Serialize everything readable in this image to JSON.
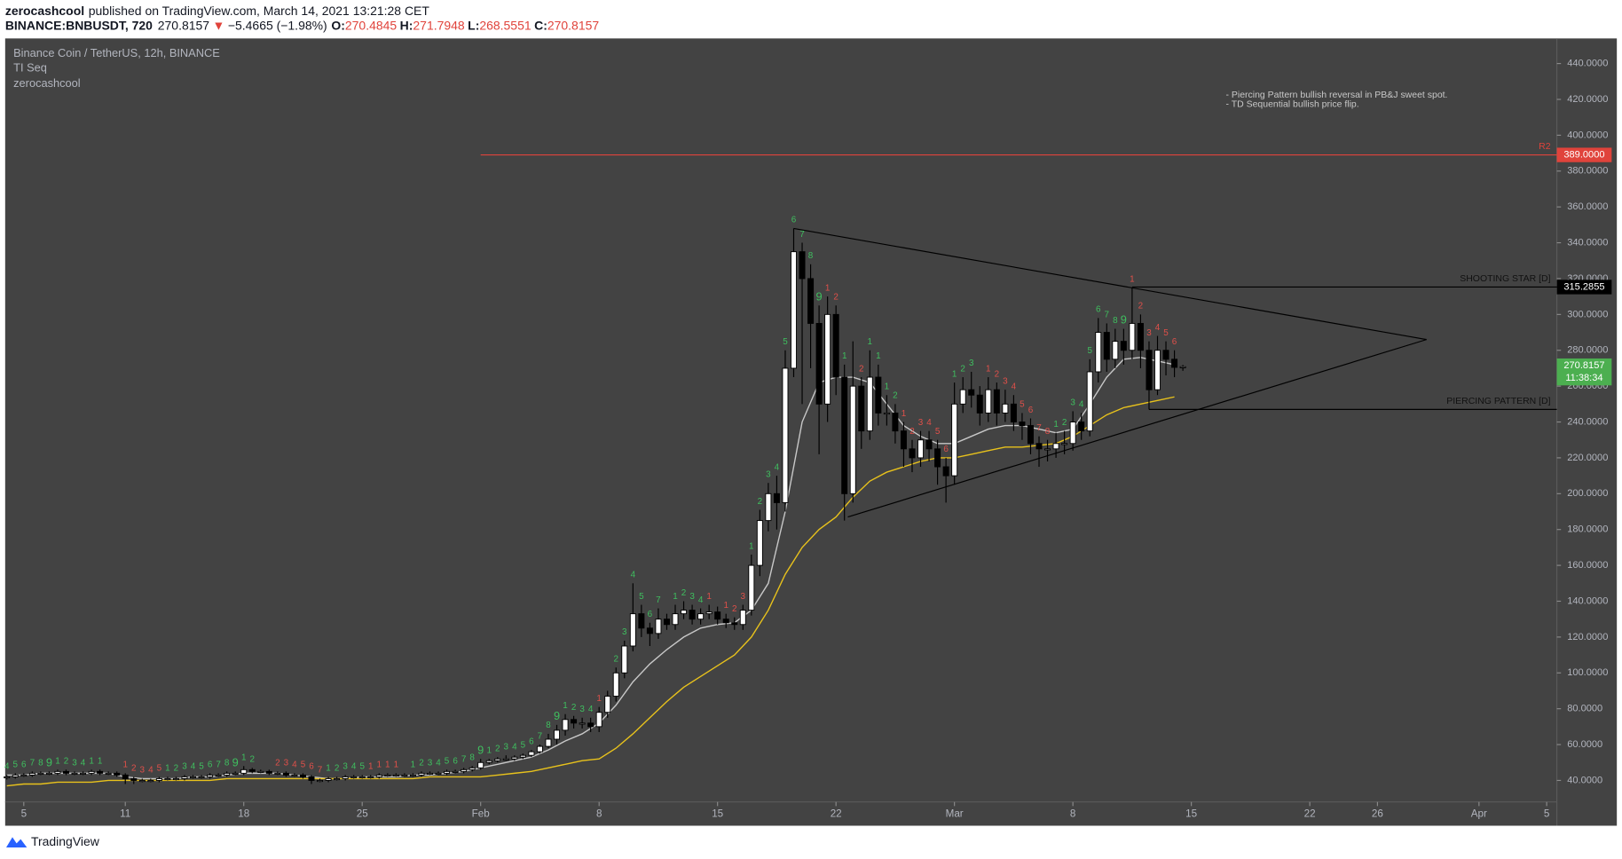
{
  "header": {
    "author": "zerocashcool",
    "published": "published on TradingView.com, March 14, 2021 13:21:28 CET",
    "symbol": "BINANCE:BNBUSDT, 720",
    "last": 270.8157,
    "direction": "▼",
    "change": "−5.4665 (−1.98%)",
    "open_label": "O:",
    "open": 270.4845,
    "high_label": "H:",
    "high": 271.7948,
    "low_label": "L:",
    "low": 268.5551,
    "close_label": "C:",
    "close": 270.8157
  },
  "chart_data": {
    "type": "candlestick",
    "title": "Binance Coin / TetherUS, 12h, BINANCE",
    "legend": [
      "TI Seq",
      "zerocashcool"
    ],
    "notes": [
      "- Piercing Pattern bullish reversal in PB&J sweet spot.",
      "- TD Sequential bullish price flip."
    ],
    "up_color": "#ffffff",
    "down_color": "#000000",
    "xlim": [
      3.9,
      95.6
    ],
    "ylim": [
      28,
      454
    ],
    "xticks": [
      {
        "value": 5,
        "label": "5"
      },
      {
        "value": 11,
        "label": "11"
      },
      {
        "value": 18,
        "label": "18"
      },
      {
        "value": 25,
        "label": "25"
      },
      {
        "value": 32,
        "label": "Feb"
      },
      {
        "value": 39,
        "label": "8"
      },
      {
        "value": 46,
        "label": "15"
      },
      {
        "value": 53,
        "label": "22"
      },
      {
        "value": 60,
        "label": "Mar"
      },
      {
        "value": 67,
        "label": "8"
      },
      {
        "value": 74,
        "label": "15"
      },
      {
        "value": 81,
        "label": "22"
      },
      {
        "value": 85,
        "label": "26"
      },
      {
        "value": 91,
        "label": "Apr"
      },
      {
        "value": 95,
        "label": "5"
      }
    ],
    "yticks": [
      {
        "value": 40,
        "label": "40.0000"
      },
      {
        "value": 60,
        "label": "60.0000"
      },
      {
        "value": 80,
        "label": "80.0000"
      },
      {
        "value": 100,
        "label": "100.0000"
      },
      {
        "value": 120,
        "label": "120.0000"
      },
      {
        "value": 140,
        "label": "140.0000"
      },
      {
        "value": 160,
        "label": "160.0000"
      },
      {
        "value": 180,
        "label": "180.0000"
      },
      {
        "value": 200,
        "label": "200.0000"
      },
      {
        "value": 220,
        "label": "220.0000"
      },
      {
        "value": 240,
        "label": "240.0000"
      },
      {
        "value": 260,
        "label": "260.0000"
      },
      {
        "value": 280,
        "label": "280.0000"
      },
      {
        "value": 300,
        "label": "300.0000"
      },
      {
        "value": 320,
        "label": "320.0000"
      },
      {
        "value": 340,
        "label": "340.0000"
      },
      {
        "value": 360,
        "label": "360.0000"
      },
      {
        "value": 380,
        "label": "380.0000"
      },
      {
        "value": 400,
        "label": "400.0000"
      },
      {
        "value": 420,
        "label": "420.0000"
      },
      {
        "value": 440,
        "label": "440.0000"
      }
    ],
    "x": [
      4,
      4.5,
      5,
      5.5,
      6,
      6.5,
      7,
      7.5,
      8,
      8.5,
      9,
      9.5,
      10,
      10.5,
      11,
      11.5,
      12,
      12.5,
      13,
      13.5,
      14,
      14.5,
      15,
      15.5,
      16,
      16.5,
      17,
      17.5,
      18,
      18.5,
      19,
      19.5,
      20,
      20.5,
      21,
      21.5,
      22,
      22.5,
      23,
      23.5,
      24,
      24.5,
      25,
      25.5,
      26,
      26.5,
      27,
      27.5,
      28,
      28.5,
      29,
      29.5,
      30,
      30.5,
      31,
      31.5,
      32,
      32.5,
      33,
      33.5,
      34,
      34.5,
      35,
      35.5,
      36,
      36.5,
      37,
      37.5,
      38,
      38.5,
      39,
      39.5,
      40,
      40.5,
      41,
      41.5,
      42,
      42.5,
      43,
      43.5,
      44,
      44.5,
      45,
      45.5,
      46,
      46.5,
      47,
      47.5,
      48,
      48.5,
      49,
      49.5,
      50,
      50.5,
      51,
      51.5,
      52,
      52.5,
      53,
      53.5,
      54,
      54.5,
      55,
      55.5,
      56,
      56.5,
      57,
      57.5,
      58,
      58.5,
      59,
      59.5,
      60,
      60.5,
      61,
      61.5,
      62,
      62.5,
      63,
      63.5,
      64,
      64.5,
      65,
      65.5,
      66,
      66.5,
      67,
      67.5,
      68,
      68.5,
      69,
      69.5,
      70,
      70.5,
      71,
      71.5,
      72,
      72.5,
      73,
      73.5
    ],
    "open": [
      41.5,
      42,
      43,
      43,
      44,
      44,
      44,
      45,
      44,
      44,
      44,
      45,
      44,
      44,
      43,
      41,
      40,
      40,
      40,
      41,
      41,
      41,
      42,
      42,
      42,
      43,
      43,
      44,
      44,
      46,
      45,
      45,
      44,
      44,
      43,
      43,
      42,
      40,
      40,
      41,
      41,
      42,
      42,
      42,
      42,
      43,
      43,
      43,
      43,
      43,
      44,
      44,
      44,
      45,
      45,
      46,
      47,
      50,
      51,
      52,
      52,
      53,
      54,
      56,
      59,
      63,
      68,
      74,
      72,
      72,
      70,
      78,
      87,
      100,
      115,
      133,
      125,
      122,
      130,
      127,
      133,
      135,
      130,
      133,
      134,
      130,
      128,
      127,
      135,
      160,
      185,
      200,
      195,
      270,
      335,
      320,
      295,
      250,
      300,
      265,
      200,
      260,
      235,
      265,
      245,
      245,
      235,
      225,
      220,
      230,
      225,
      215,
      210,
      250,
      258,
      255,
      245,
      258,
      245,
      250,
      240,
      238,
      228,
      225,
      225,
      228,
      228,
      240,
      235,
      268,
      290,
      275,
      285,
      280,
      295,
      280,
      258,
      280,
      275,
      270.4845
    ],
    "high": [
      43,
      44,
      44,
      45,
      45,
      45,
      46,
      46,
      45,
      45,
      46,
      46,
      45,
      45,
      44,
      42,
      41,
      41,
      42,
      42,
      42,
      43,
      43,
      43,
      44,
      44,
      45,
      45,
      48,
      47,
      46,
      46,
      45,
      45,
      44,
      44,
      43,
      41,
      42,
      42,
      43,
      43,
      43,
      43,
      44,
      44,
      44,
      44,
      44,
      45,
      45,
      45,
      46,
      46,
      47,
      48,
      52,
      52,
      53,
      54,
      54,
      55,
      57,
      60,
      66,
      71,
      77,
      76,
      75,
      75,
      81,
      90,
      103,
      118,
      150,
      138,
      128,
      136,
      133,
      138,
      140,
      138,
      136,
      138,
      137,
      133,
      131,
      138,
      166,
      191,
      206,
      210,
      280,
      348,
      340,
      328,
      305,
      310,
      305,
      272,
      285,
      265,
      280,
      272,
      255,
      250,
      240,
      230,
      235,
      235,
      230,
      220,
      262,
      265,
      268,
      260,
      265,
      262,
      258,
      255,
      245,
      242,
      232,
      230,
      234,
      235,
      246,
      245,
      275,
      298,
      295,
      292,
      292,
      315,
      300,
      285,
      288,
      285,
      280,
      271.7948
    ],
    "low": [
      40.5,
      41,
      42,
      42,
      43,
      43,
      43,
      43,
      43,
      43,
      43,
      43,
      43,
      42,
      38,
      38,
      39,
      39,
      39,
      40,
      40,
      40,
      41,
      41,
      41,
      42,
      42,
      43,
      43,
      44,
      44,
      43,
      43,
      42,
      42,
      41,
      38,
      39,
      39,
      40,
      40,
      41,
      41,
      41,
      41,
      42,
      42,
      42,
      42,
      42,
      43,
      43,
      43,
      44,
      44,
      45,
      46,
      49,
      50,
      51,
      51,
      52,
      53,
      55,
      58,
      60,
      65,
      69,
      69,
      67,
      67,
      75,
      84,
      97,
      112,
      120,
      115,
      119,
      124,
      124,
      130,
      127,
      127,
      130,
      127,
      125,
      124,
      124,
      132,
      154,
      179,
      180,
      190,
      265,
      250,
      270,
      222,
      240,
      255,
      185,
      195,
      225,
      230,
      238,
      238,
      228,
      215,
      212,
      215,
      218,
      205,
      195,
      205,
      245,
      248,
      238,
      240,
      238,
      240,
      235,
      230,
      222,
      215,
      218,
      220,
      222,
      224,
      230,
      232,
      262,
      268,
      270,
      272,
      275,
      270,
      247,
      255,
      266,
      265,
      268.5551
    ],
    "close": [
      42,
      43,
      43,
      44,
      44,
      44,
      45,
      44,
      44,
      44,
      45,
      44,
      44,
      43,
      41,
      40,
      40,
      40,
      41,
      41,
      41,
      42,
      42,
      42,
      43,
      43,
      44,
      44,
      46,
      45,
      45,
      44,
      44,
      43,
      43,
      42,
      40,
      40,
      41,
      41,
      42,
      42,
      42,
      42,
      43,
      43,
      43,
      43,
      43,
      44,
      44,
      44,
      45,
      45,
      46,
      47,
      50,
      51,
      52,
      52,
      53,
      54,
      56,
      59,
      63,
      68,
      74,
      72,
      72,
      70,
      78,
      87,
      100,
      115,
      133,
      125,
      122,
      130,
      127,
      133,
      135,
      130,
      133,
      134,
      130,
      128,
      127,
      135,
      160,
      185,
      200,
      195,
      270,
      335,
      320,
      295,
      250,
      300,
      265,
      200,
      260,
      235,
      265,
      245,
      245,
      235,
      225,
      220,
      230,
      225,
      215,
      210,
      250,
      258,
      255,
      245,
      258,
      245,
      250,
      240,
      238,
      228,
      225,
      225,
      228,
      228,
      240,
      235,
      268,
      290,
      275,
      285,
      280,
      295,
      280,
      258,
      280,
      275,
      270.4845,
      270.8157
    ],
    "moving_averages": [
      {
        "color": "#c8c8c8",
        "x": [
          4,
          5,
          6,
          7,
          8,
          9,
          10,
          11,
          12,
          13,
          14,
          15,
          16,
          17,
          18,
          19,
          20,
          21,
          22,
          23,
          24,
          25,
          26,
          27,
          28,
          29,
          30,
          31,
          32,
          33,
          34,
          35,
          36,
          37,
          38,
          39,
          40,
          41,
          42,
          43,
          44,
          45,
          46,
          47,
          48,
          49,
          50,
          51,
          52,
          53,
          54,
          55,
          56,
          57,
          58,
          59,
          60,
          61,
          62,
          63,
          64,
          65,
          66,
          67,
          68,
          69,
          70,
          71,
          72,
          73
        ],
        "values": [
          43,
          43,
          44,
          44,
          44,
          44,
          44,
          42,
          41,
          41,
          41,
          42,
          42,
          43,
          44,
          44,
          44,
          43,
          42,
          41,
          41,
          42,
          42,
          42,
          43,
          43,
          44,
          45,
          47,
          49,
          51,
          53,
          57,
          62,
          66,
          72,
          82,
          95,
          105,
          113,
          120,
          125,
          127,
          128,
          135,
          150,
          190,
          240,
          262,
          265,
          265,
          262,
          250,
          238,
          232,
          228,
          228,
          232,
          236,
          238,
          238,
          236,
          234,
          236,
          250,
          265,
          275,
          276,
          274,
          272
        ]
      },
      {
        "color": "#e8c21c",
        "x": [
          4,
          5,
          6,
          7,
          8,
          9,
          10,
          11,
          12,
          13,
          14,
          15,
          16,
          17,
          18,
          19,
          20,
          21,
          22,
          23,
          24,
          25,
          26,
          27,
          28,
          29,
          30,
          31,
          32,
          33,
          34,
          35,
          36,
          37,
          38,
          39,
          40,
          41,
          42,
          43,
          44,
          45,
          46,
          47,
          48,
          49,
          50,
          51,
          52,
          53,
          54,
          55,
          56,
          57,
          58,
          59,
          60,
          61,
          62,
          63,
          64,
          65,
          66,
          67,
          68,
          69,
          70,
          71,
          72,
          73
        ],
        "values": [
          37,
          38,
          38,
          39,
          39,
          39,
          40,
          40,
          40,
          40,
          40,
          40,
          40,
          41,
          41,
          41,
          41,
          41,
          41,
          41,
          41,
          41,
          41,
          41,
          41,
          42,
          42,
          42,
          42,
          43,
          44,
          45,
          47,
          49,
          51,
          52,
          58,
          66,
          75,
          84,
          92,
          98,
          104,
          110,
          120,
          135,
          155,
          170,
          180,
          187,
          198,
          207,
          212,
          215,
          218,
          220,
          220,
          222,
          224,
          226,
          226,
          227,
          228,
          232,
          238,
          244,
          248,
          250,
          252,
          254
        ]
      }
    ],
    "td_setups": [
      {
        "color": "#3fbf5f",
        "x": [
          4,
          4.5,
          5,
          5.5,
          6,
          6.5,
          7,
          7.5,
          8,
          8.5,
          9,
          9.5,
          13.5,
          14,
          14.5,
          15,
          15.5,
          16,
          16.5,
          17,
          17.5,
          18,
          18.5,
          23,
          23.5,
          24,
          24.5,
          25,
          28,
          28.5,
          29,
          29.5,
          30,
          30.5,
          31,
          31.5,
          32,
          32.5,
          33,
          33.5,
          34,
          34.5,
          35,
          35.5,
          36,
          36.5,
          37,
          37.5,
          38,
          38.5,
          40,
          40.5,
          41,
          41.5,
          42,
          42.5,
          43.5,
          44,
          44.5,
          45,
          48,
          48.5,
          49,
          49.5,
          50,
          50.5,
          51,
          51.5,
          52,
          53.5,
          55,
          55.5,
          56,
          56.5,
          60,
          60.5,
          61,
          66,
          66.5,
          67,
          67.5,
          68,
          68.5,
          69,
          69.5,
          70
        ],
        "counts": [
          4,
          5,
          6,
          7,
          8,
          9,
          1,
          2,
          3,
          4,
          1,
          1,
          1,
          2,
          3,
          4,
          5,
          6,
          7,
          8,
          9,
          1,
          2,
          1,
          2,
          3,
          4,
          5,
          1,
          2,
          3,
          4,
          5,
          6,
          7,
          8,
          9,
          1,
          2,
          3,
          4,
          5,
          6,
          7,
          8,
          9,
          1,
          2,
          3,
          4,
          2,
          3,
          4,
          5,
          6,
          7,
          1,
          2,
          3,
          4,
          1,
          2,
          3,
          4,
          5,
          6,
          7,
          8,
          9,
          1,
          1,
          1,
          1,
          2,
          1,
          2,
          3,
          1,
          2,
          3,
          4,
          5,
          6,
          7,
          8,
          9
        ]
      },
      {
        "color": "#e0504a",
        "x": [
          11,
          11.5,
          12,
          12.5,
          13,
          20,
          20.5,
          21,
          21.5,
          22,
          22.5,
          25.5,
          26,
          26.5,
          27,
          39,
          45.5,
          46.5,
          47,
          47.5,
          52.5,
          53,
          54.5,
          57,
          57.5,
          58,
          58.5,
          59,
          59.5,
          62,
          62.5,
          63,
          63.5,
          64,
          64.5,
          65,
          65.5,
          70.5,
          71,
          71.5,
          72,
          72.5,
          73
        ],
        "counts": [
          1,
          2,
          3,
          4,
          5,
          2,
          3,
          4,
          5,
          6,
          7,
          1,
          1,
          1,
          1,
          1,
          1,
          1,
          2,
          3,
          1,
          2,
          2,
          1,
          2,
          3,
          4,
          5,
          6,
          1,
          2,
          3,
          4,
          5,
          6,
          7,
          8,
          1,
          2,
          3,
          4,
          5,
          6
        ]
      }
    ],
    "levels": [
      {
        "name": "R2",
        "price": {
          "value": 389,
          "label": "389.0000"
        },
        "from": 32,
        "color": "#e0433b"
      },
      {
        "name": "SHOOTING STAR [D]",
        "price": {
          "value": 315.2855,
          "label": "315.2855"
        },
        "from": 70.5,
        "color": "#000000"
      },
      {
        "name": "PIERCING PATTERN [D]",
        "price": 247,
        "from": 71.5,
        "color": "#000000"
      }
    ],
    "trendlines": [
      {
        "x": [
          50.5,
          87.9
        ],
        "y": [
          348,
          286
        ]
      },
      {
        "x": [
          53.7,
          87.9
        ],
        "y": [
          187,
          286
        ]
      }
    ],
    "last_price": 270.8157,
    "countdown": "11:38:34",
    "last_color": "#4caf50"
  },
  "footer": {
    "brand": "TradingView"
  }
}
